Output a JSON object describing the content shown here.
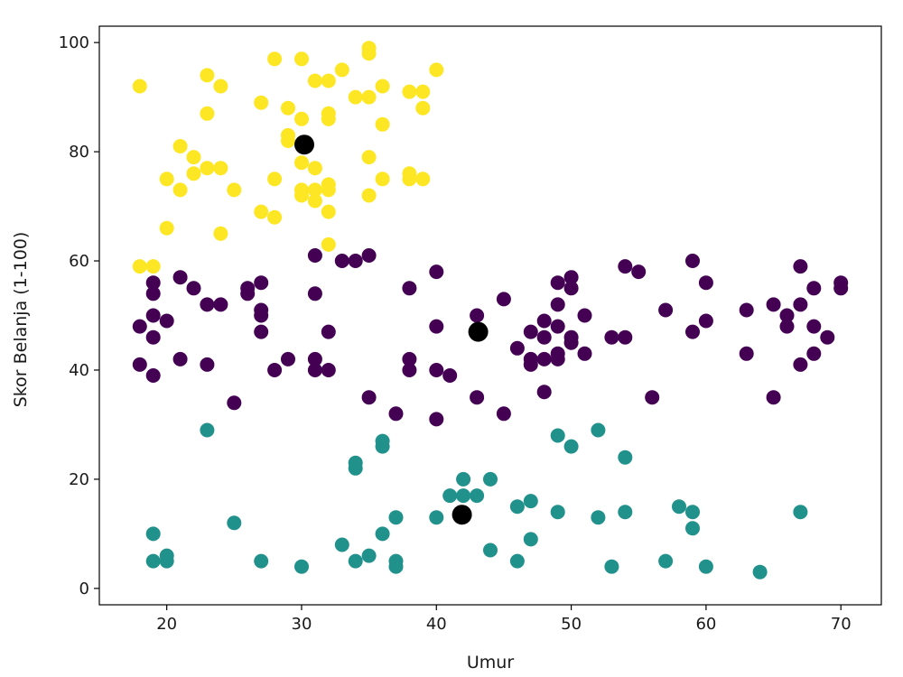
{
  "chart_data": {
    "type": "scatter",
    "title": "",
    "xlabel": "Umur",
    "ylabel": "Skor Belanja (1-100)",
    "xlim": [
      15,
      73
    ],
    "ylim": [
      -3,
      103
    ],
    "xticks": [
      20,
      30,
      40,
      50,
      60,
      70
    ],
    "yticks": [
      0,
      20,
      40,
      60,
      80,
      100
    ],
    "grid": false,
    "legend": "none",
    "colors": {
      "cluster_purple": "#440154",
      "cluster_teal": "#21918c",
      "cluster_yellow": "#fde725",
      "centroid": "#000000"
    },
    "series": [
      {
        "color": "#fde725",
        "points": [
          [
            18,
            92
          ],
          [
            18,
            59
          ],
          [
            19,
            59
          ],
          [
            20,
            75
          ],
          [
            20,
            66
          ],
          [
            21,
            81
          ],
          [
            21,
            73
          ],
          [
            22,
            79
          ],
          [
            22,
            76
          ],
          [
            23,
            94
          ],
          [
            23,
            87
          ],
          [
            23,
            77
          ],
          [
            24,
            92
          ],
          [
            24,
            77
          ],
          [
            24,
            65
          ],
          [
            25,
            73
          ],
          [
            27,
            89
          ],
          [
            27,
            69
          ],
          [
            28,
            97
          ],
          [
            28,
            75
          ],
          [
            28,
            68
          ],
          [
            29,
            88
          ],
          [
            29,
            83
          ],
          [
            29,
            82
          ],
          [
            30,
            97
          ],
          [
            30,
            86
          ],
          [
            30,
            78
          ],
          [
            30,
            73
          ],
          [
            30,
            72
          ],
          [
            31,
            93
          ],
          [
            31,
            77
          ],
          [
            31,
            73
          ],
          [
            31,
            71
          ],
          [
            32,
            93
          ],
          [
            32,
            87
          ],
          [
            32,
            86
          ],
          [
            32,
            74
          ],
          [
            32,
            73
          ],
          [
            32,
            69
          ],
          [
            32,
            63
          ],
          [
            33,
            95
          ],
          [
            34,
            90
          ],
          [
            35,
            99
          ],
          [
            35,
            98
          ],
          [
            35,
            90
          ],
          [
            35,
            79
          ],
          [
            35,
            72
          ],
          [
            36,
            92
          ],
          [
            36,
            85
          ],
          [
            36,
            75
          ],
          [
            38,
            91
          ],
          [
            38,
            76
          ],
          [
            38,
            75
          ],
          [
            39,
            91
          ],
          [
            39,
            88
          ],
          [
            39,
            75
          ],
          [
            40,
            95
          ]
        ]
      },
      {
        "color": "#440154",
        "points": [
          [
            18,
            48
          ],
          [
            18,
            41
          ],
          [
            19,
            56
          ],
          [
            19,
            54
          ],
          [
            19,
            50
          ],
          [
            19,
            46
          ],
          [
            19,
            39
          ],
          [
            20,
            49
          ],
          [
            21,
            57
          ],
          [
            21,
            42
          ],
          [
            22,
            55
          ],
          [
            23,
            52
          ],
          [
            23,
            41
          ],
          [
            24,
            52
          ],
          [
            25,
            34
          ],
          [
            26,
            55
          ],
          [
            26,
            54
          ],
          [
            27,
            56
          ],
          [
            27,
            51
          ],
          [
            27,
            50
          ],
          [
            27,
            47
          ],
          [
            28,
            40
          ],
          [
            29,
            42
          ],
          [
            31,
            61
          ],
          [
            31,
            54
          ],
          [
            31,
            42
          ],
          [
            31,
            40
          ],
          [
            32,
            47
          ],
          [
            32,
            40
          ],
          [
            33,
            60
          ],
          [
            34,
            60
          ],
          [
            35,
            61
          ],
          [
            35,
            35
          ],
          [
            37,
            32
          ],
          [
            38,
            55
          ],
          [
            38,
            42
          ],
          [
            38,
            40
          ],
          [
            40,
            58
          ],
          [
            40,
            48
          ],
          [
            40,
            40
          ],
          [
            40,
            31
          ],
          [
            41,
            39
          ],
          [
            43,
            50
          ],
          [
            43,
            35
          ],
          [
            45,
            53
          ],
          [
            45,
            32
          ],
          [
            46,
            44
          ],
          [
            47,
            47
          ],
          [
            47,
            42
          ],
          [
            47,
            41
          ],
          [
            48,
            49
          ],
          [
            48,
            46
          ],
          [
            48,
            42
          ],
          [
            48,
            36
          ],
          [
            49,
            56
          ],
          [
            49,
            52
          ],
          [
            49,
            48
          ],
          [
            49,
            43
          ],
          [
            49,
            42
          ],
          [
            50,
            57
          ],
          [
            50,
            55
          ],
          [
            50,
            46
          ],
          [
            50,
            45
          ],
          [
            51,
            50
          ],
          [
            51,
            43
          ],
          [
            53,
            46
          ],
          [
            54,
            59
          ],
          [
            54,
            46
          ],
          [
            55,
            58
          ],
          [
            56,
            35
          ],
          [
            57,
            51
          ],
          [
            59,
            60
          ],
          [
            59,
            47
          ],
          [
            60,
            56
          ],
          [
            60,
            49
          ],
          [
            63,
            51
          ],
          [
            63,
            43
          ],
          [
            65,
            52
          ],
          [
            65,
            35
          ],
          [
            66,
            50
          ],
          [
            66,
            48
          ],
          [
            67,
            59
          ],
          [
            67,
            52
          ],
          [
            67,
            41
          ],
          [
            68,
            55
          ],
          [
            68,
            48
          ],
          [
            68,
            43
          ],
          [
            69,
            46
          ],
          [
            70,
            56
          ],
          [
            70,
            55
          ]
        ]
      },
      {
        "color": "#21918c",
        "points": [
          [
            19,
            10
          ],
          [
            19,
            5
          ],
          [
            20,
            6
          ],
          [
            20,
            5
          ],
          [
            23,
            29
          ],
          [
            25,
            12
          ],
          [
            27,
            5
          ],
          [
            30,
            4
          ],
          [
            33,
            8
          ],
          [
            34,
            23
          ],
          [
            34,
            22
          ],
          [
            34,
            5
          ],
          [
            35,
            6
          ],
          [
            36,
            27
          ],
          [
            36,
            26
          ],
          [
            36,
            10
          ],
          [
            37,
            13
          ],
          [
            37,
            5
          ],
          [
            37,
            4
          ],
          [
            40,
            13
          ],
          [
            41,
            17
          ],
          [
            42,
            20
          ],
          [
            42,
            17
          ],
          [
            43,
            17
          ],
          [
            44,
            20
          ],
          [
            44,
            7
          ],
          [
            46,
            15
          ],
          [
            46,
            5
          ],
          [
            47,
            16
          ],
          [
            47,
            9
          ],
          [
            49,
            28
          ],
          [
            49,
            14
          ],
          [
            50,
            26
          ],
          [
            52,
            29
          ],
          [
            52,
            13
          ],
          [
            53,
            4
          ],
          [
            54,
            24
          ],
          [
            54,
            14
          ],
          [
            57,
            5
          ],
          [
            58,
            15
          ],
          [
            59,
            14
          ],
          [
            59,
            11
          ],
          [
            60,
            4
          ],
          [
            64,
            3
          ],
          [
            67,
            14
          ]
        ]
      }
    ],
    "centroids": [
      [
        30.2,
        81.3
      ],
      [
        43.1,
        47.0
      ],
      [
        41.9,
        13.5
      ]
    ]
  }
}
